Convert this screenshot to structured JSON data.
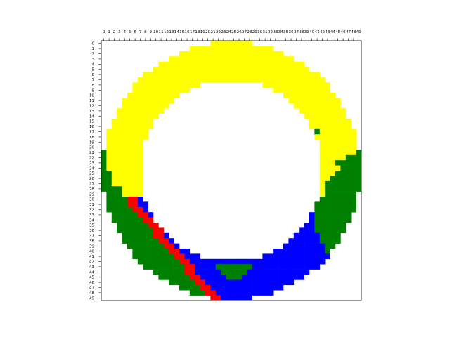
{
  "chart_data": {
    "type": "heatmap",
    "title": "",
    "xlabel": "",
    "ylabel": "",
    "grid": false,
    "x_ticks": [
      "0",
      "1",
      "2",
      "3",
      "4",
      "5",
      "6",
      "7",
      "8",
      "9",
      "10",
      "11",
      "12",
      "13",
      "14",
      "15",
      "16",
      "17",
      "18",
      "19",
      "20",
      "21",
      "22",
      "23",
      "24",
      "25",
      "26",
      "27",
      "28",
      "29",
      "30",
      "31",
      "32",
      "33",
      "34",
      "35",
      "36",
      "37",
      "38",
      "39",
      "40",
      "41",
      "42",
      "43",
      "44",
      "45",
      "46",
      "47",
      "48",
      "49"
    ],
    "y_ticks": [
      "0",
      "1",
      "2",
      "3",
      "4",
      "5",
      "6",
      "7",
      "8",
      "9",
      "10",
      "11",
      "12",
      "13",
      "14",
      "15",
      "16",
      "17",
      "18",
      "19",
      "20",
      "21",
      "22",
      "23",
      "24",
      "25",
      "26",
      "27",
      "28",
      "29",
      "30",
      "31",
      "32",
      "33",
      "34",
      "35",
      "36",
      "37",
      "38",
      "39",
      "40",
      "41",
      "42",
      "43",
      "44",
      "45",
      "46",
      "47",
      "48",
      "49"
    ],
    "colors": {
      "yellow": "#ffff00",
      "green": "#008000",
      "blue": "#0000ff",
      "red": "#ff0000"
    },
    "grid_size": 50,
    "ring": {
      "center_row": 24.5,
      "center_col": 24.5,
      "inner_radius": 17.5,
      "outer_radius": 24.8,
      "inner_top_row": 6.5
    },
    "regions": [
      {
        "color": "yellow",
        "description": "upper half of ring, rows 0-29"
      },
      {
        "color": "green",
        "description": "left band rows 21-37 and right band rows 21-43"
      },
      {
        "color": "blue",
        "description": "lower ring rows 29-49"
      },
      {
        "color": "red",
        "description": "diagonal stripe rows 30-49, columns 5-21"
      },
      {
        "color": "green",
        "description": "small blob rows 43-45, columns 22-28"
      },
      {
        "color": "green",
        "description": "single cell row 17, column 41"
      }
    ]
  }
}
